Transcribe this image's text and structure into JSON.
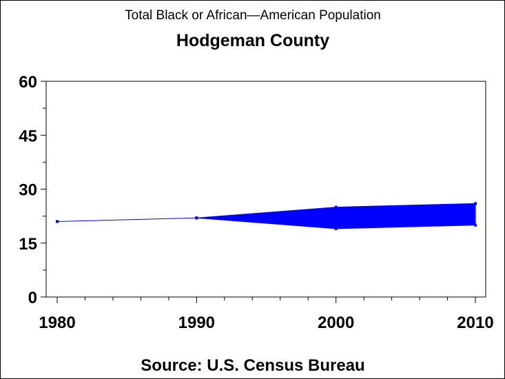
{
  "chart_data": {
    "type": "line",
    "title": "Total Black or African—American Population",
    "subtitle": "Hodgeman County",
    "footnote": "Source: U.S. Census Bureau",
    "xlabel": "",
    "ylabel": "",
    "x": [
      1980,
      1990,
      2000,
      2010
    ],
    "series": [
      {
        "name": "lower",
        "values": [
          21,
          22,
          19,
          20
        ]
      },
      {
        "name": "upper",
        "values": [
          21,
          22,
          25,
          26
        ]
      }
    ],
    "xlim": [
      1980,
      2010
    ],
    "ylim": [
      0,
      60
    ],
    "xticks": [
      "1980",
      "1990",
      "2000",
      "2010"
    ],
    "yticks": [
      "0",
      "15",
      "30",
      "45",
      "60"
    ],
    "grid": false,
    "color": "#0000ff"
  }
}
